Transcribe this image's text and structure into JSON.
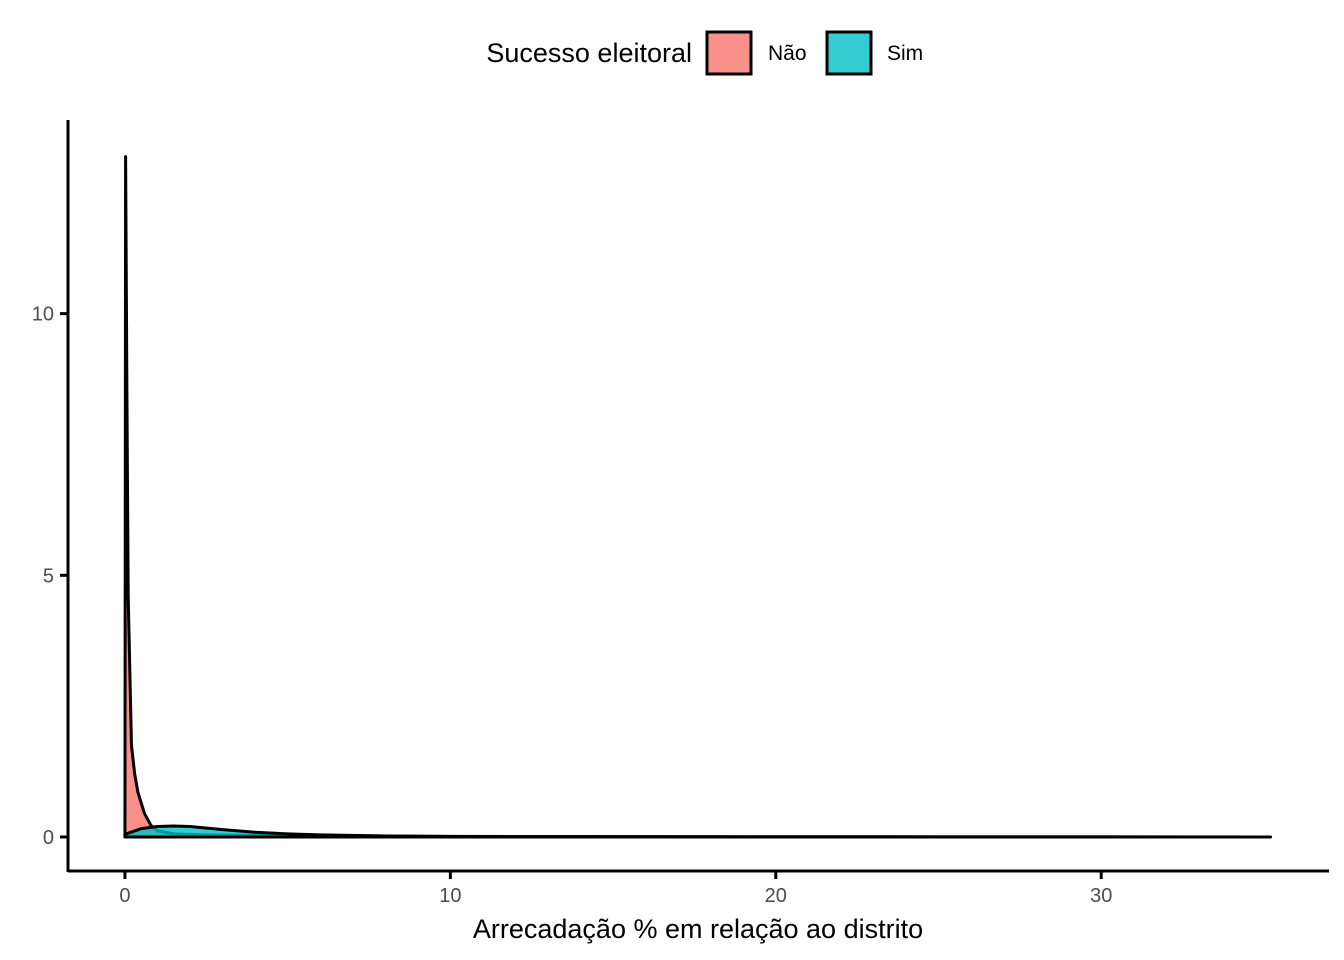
{
  "chart_data": {
    "type": "area",
    "xlabel": "Arrecadação % em relação ao distrito",
    "ylabel": "",
    "xlim": [
      -1.75,
      37.0
    ],
    "ylim": [
      -0.65,
      13.7
    ],
    "x_ticks": [
      0,
      10,
      20,
      30
    ],
    "x_tick_labels": [
      "0",
      "10",
      "20",
      "30"
    ],
    "y_ticks": [
      0,
      5,
      10
    ],
    "y_tick_labels": [
      "0",
      "5",
      "10"
    ],
    "grid": false,
    "legend": {
      "title": "Sucesso eleitoral",
      "position": "top",
      "entries": [
        "Não",
        "Sim"
      ]
    },
    "series": [
      {
        "name": "Não",
        "color": "#F8766D",
        "opacity": 0.8,
        "points": [
          [
            0,
            0
          ],
          [
            0.02,
            13.0
          ],
          [
            0.06,
            8.5
          ],
          [
            0.1,
            4.6
          ],
          [
            0.2,
            1.75
          ],
          [
            0.3,
            1.2
          ],
          [
            0.4,
            0.85
          ],
          [
            0.6,
            0.45
          ],
          [
            0.8,
            0.22
          ],
          [
            1.0,
            0.12
          ],
          [
            1.5,
            0.06
          ],
          [
            2.5,
            0.04
          ],
          [
            4,
            0.03
          ],
          [
            6,
            0.02
          ],
          [
            10,
            0.01
          ],
          [
            15,
            0.005
          ],
          [
            20,
            0.003
          ],
          [
            25,
            0.002
          ],
          [
            30,
            0.001
          ],
          [
            35.2,
            0.0
          ]
        ]
      },
      {
        "name": "Sim",
        "color": "#00BFC4",
        "opacity": 0.8,
        "points": [
          [
            0,
            0.05
          ],
          [
            0.5,
            0.16
          ],
          [
            1.0,
            0.2
          ],
          [
            1.5,
            0.21
          ],
          [
            2.0,
            0.2
          ],
          [
            3.0,
            0.14
          ],
          [
            4.0,
            0.09
          ],
          [
            5.0,
            0.06
          ],
          [
            6.0,
            0.04
          ],
          [
            8.0,
            0.02
          ],
          [
            10.0,
            0.012
          ],
          [
            12,
            0.01
          ],
          [
            15,
            0.006
          ],
          [
            20,
            0.004
          ],
          [
            25,
            0.003
          ],
          [
            30,
            0.002
          ],
          [
            35.2,
            0.0
          ]
        ]
      }
    ]
  }
}
